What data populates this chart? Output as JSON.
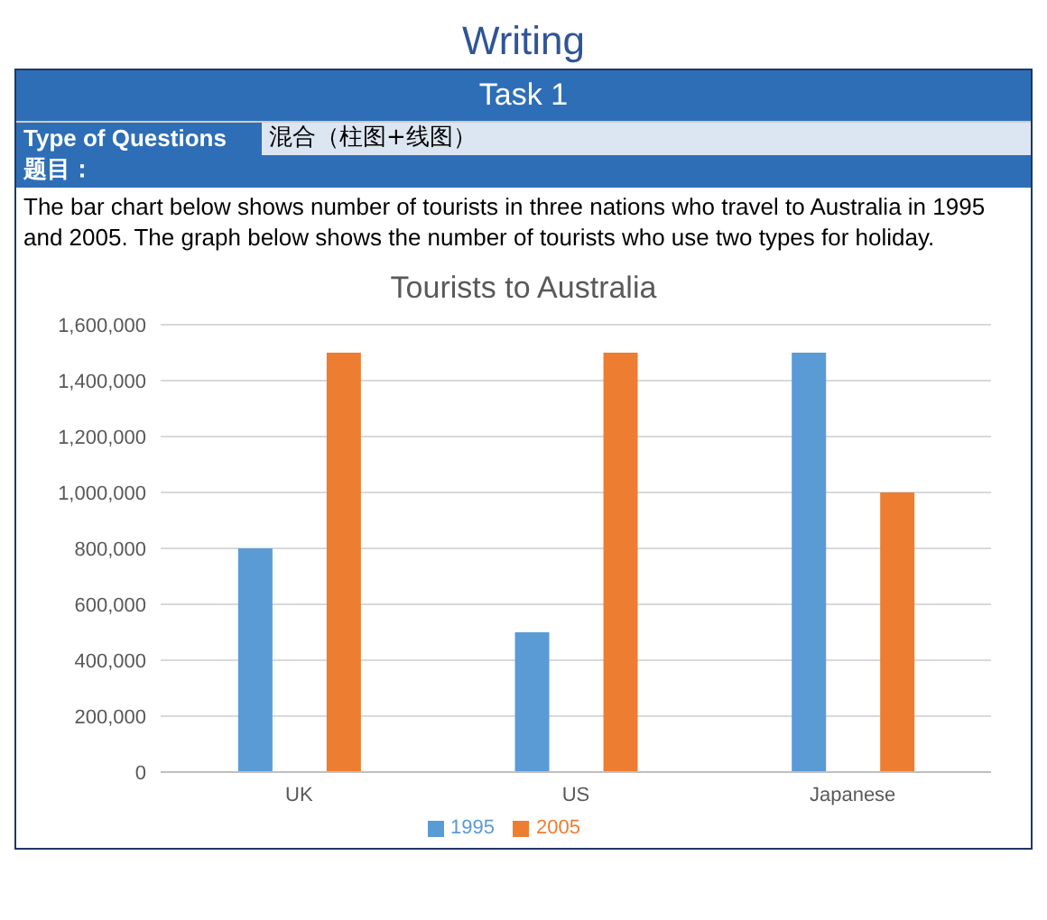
{
  "chart_data": {
    "type": "bar",
    "title": "Tourists to Australia",
    "annotations": [
      "Writing",
      "Task 1",
      "Type of Questions",
      "混合（柱图+线图）",
      "题目：",
      "The bar chart below shows number of tourists in three nations who travel to Australia in 1995 and 2005. The graph below shows the number of tourists who use two types for holiday."
    ],
    "categories": [
      "UK",
      "US",
      "Japanese"
    ],
    "series": [
      {
        "name": "1995",
        "color": "#5b9bd5",
        "values": [
          800000,
          500000,
          1500000
        ]
      },
      {
        "name": "2005",
        "color": "#ed7d31",
        "values": [
          1500000,
          1500000,
          1000000
        ]
      }
    ],
    "ylim": [
      0,
      1600000
    ],
    "yticks": [
      {
        "value": 0,
        "label": "0"
      },
      {
        "value": 200000,
        "label": "200,000"
      },
      {
        "value": 400000,
        "label": "400,000"
      },
      {
        "value": 600000,
        "label": "600,000"
      },
      {
        "value": 800000,
        "label": "800,000"
      },
      {
        "value": 1000000,
        "label": "1,000,000"
      },
      {
        "value": 1200000,
        "label": "1,200,000"
      },
      {
        "value": 1400000,
        "label": "1,400,000"
      },
      {
        "value": 1600000,
        "label": "1,600,000"
      }
    ],
    "grid": "y",
    "legend": "bottom"
  }
}
